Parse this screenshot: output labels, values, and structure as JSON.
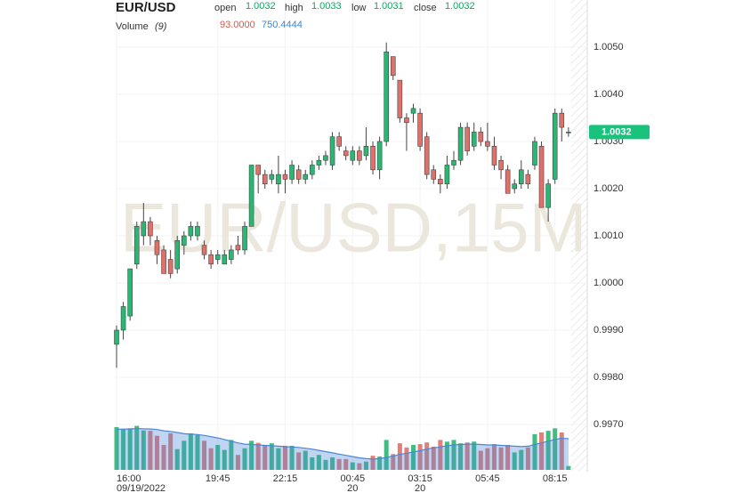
{
  "chart_data": {
    "type": "candlestick",
    "title": "EUR/USD",
    "watermark": "EUR/USD,15M",
    "labels": {
      "open": "open",
      "high": "high",
      "low": "low",
      "close": "close"
    },
    "categories": [
      "16:00",
      null,
      null,
      null,
      null,
      null,
      null,
      null,
      null,
      null,
      null,
      null,
      null,
      null,
      null,
      "19:45",
      null,
      null,
      null,
      null,
      null,
      null,
      null,
      null,
      null,
      "22:15",
      null,
      null,
      null,
      null,
      null,
      null,
      null,
      null,
      null,
      "00:45",
      null,
      null,
      null,
      null,
      null,
      null,
      null,
      null,
      null,
      "03:15",
      null,
      null,
      null,
      null,
      null,
      null,
      null,
      null,
      null,
      "05:45",
      null,
      null,
      null,
      null,
      null,
      null,
      null,
      null,
      null,
      "08:15",
      null,
      null
    ],
    "dates": [
      "09/19/2022",
      null,
      null,
      null,
      null,
      null,
      null,
      null,
      null,
      null,
      null,
      null,
      null,
      null,
      null,
      null,
      null,
      null,
      null,
      null,
      null,
      null,
      null,
      null,
      null,
      null,
      null,
      null,
      null,
      null,
      null,
      null,
      null,
      null,
      null,
      "20",
      null,
      null,
      null,
      null,
      null,
      null,
      null,
      null,
      null,
      "20",
      null,
      null,
      null,
      null,
      null,
      null,
      null,
      null,
      null,
      null,
      null,
      null,
      null,
      null,
      null,
      null,
      null,
      null,
      null,
      null,
      null,
      null
    ],
    "open": [
      0.9987,
      0.999,
      0.9993,
      1.0004,
      1.001,
      1.0013,
      1.0009,
      1.0007,
      1.0005,
      1.0003,
      1.0008,
      1.001,
      1.001,
      1.0008,
      1.0006,
      1.0005,
      1.0004,
      1.0005,
      1.0008,
      1.0007,
      1.0012,
      1.0025,
      1.0023,
      1.0022,
      1.0021,
      1.0023,
      1.0022,
      1.0024,
      1.0022,
      1.0023,
      1.0025,
      1.0026,
      1.0025,
      1.0031,
      1.0028,
      1.0026,
      1.0028,
      1.0027,
      1.0029,
      1.0024,
      1.003,
      1.0048,
      1.0043,
      1.0035,
      1.0036,
      1.0036,
      1.0031,
      1.0024,
      1.0022,
      1.0021,
      1.0025,
      1.0026,
      1.0033,
      1.0029,
      1.0032,
      1.003,
      1.0029,
      1.0026,
      1.0024,
      1.002,
      1.0021,
      1.0023,
      1.0025,
      1.0029,
      1.0016,
      1.0022,
      1.0036,
      1.0032
    ],
    "high": [
      0.9991,
      0.9996,
      1.0003,
      1.0013,
      1.0017,
      1.0014,
      1.001,
      1.0008,
      1.0007,
      1.001,
      1.0011,
      1.0013,
      1.0013,
      1.0009,
      1.0007,
      1.0007,
      1.0007,
      1.0008,
      1.001,
      1.0013,
      1.0025,
      1.0025,
      1.0024,
      1.0024,
      1.0027,
      1.0024,
      1.0026,
      1.0025,
      1.0024,
      1.0026,
      1.0027,
      1.0028,
      1.0032,
      1.0032,
      1.0029,
      1.0029,
      1.0029,
      1.0033,
      1.003,
      1.0031,
      1.0051,
      1.0048,
      1.0043,
      1.0036,
      1.0038,
      1.0037,
      1.0032,
      1.0025,
      1.0023,
      1.0027,
      1.0028,
      1.0034,
      1.0034,
      1.0034,
      1.0033,
      1.0034,
      1.0031,
      1.0027,
      1.0025,
      1.0022,
      1.0026,
      1.0024,
      1.0031,
      1.003,
      1.0022,
      1.0037,
      1.0037,
      1.0033
    ],
    "low": [
      0.9982,
      0.9988,
      0.9992,
      1.0003,
      1.0008,
      1.0008,
      1.0004,
      1.0002,
      1.0001,
      1.0002,
      1.0006,
      1.0009,
      1.0009,
      1.0005,
      1.0003,
      1.0004,
      1.0004,
      1.0004,
      1.0006,
      1.0006,
      1.0012,
      1.0019,
      1.002,
      1.0021,
      1.0019,
      1.0019,
      1.0021,
      1.0021,
      1.0021,
      1.0022,
      1.0024,
      1.0025,
      1.0024,
      1.0028,
      1.0026,
      1.0025,
      1.0025,
      1.0026,
      1.0023,
      1.0022,
      1.0029,
      1.0043,
      1.0034,
      1.0028,
      1.0034,
      1.0028,
      1.0022,
      1.0021,
      1.0019,
      1.002,
      1.0024,
      1.0025,
      1.0027,
      1.0028,
      1.0029,
      1.0028,
      1.0024,
      1.0022,
      1.0019,
      1.0019,
      1.002,
      1.002,
      1.0024,
      1.0016,
      1.0013,
      1.0021,
      1.003,
      1.0031
    ],
    "close": [
      0.999,
      0.9995,
      1.0003,
      1.0012,
      1.0013,
      1.001,
      1.0006,
      1.0002,
      1.0002,
      1.0009,
      1.001,
      1.0012,
      1.0012,
      1.0006,
      1.0004,
      1.0006,
      1.0006,
      1.0007,
      1.0007,
      1.0012,
      1.0025,
      1.0023,
      1.0021,
      1.0023,
      1.0023,
      1.0022,
      1.0025,
      1.0022,
      1.0023,
      1.0025,
      1.0026,
      1.0027,
      1.0031,
      1.0029,
      1.0027,
      1.0028,
      1.0026,
      1.0029,
      1.0024,
      1.003,
      1.0049,
      1.0044,
      1.0035,
      1.0034,
      1.0037,
      1.0029,
      1.0023,
      1.0022,
      1.0021,
      1.0025,
      1.0026,
      1.0033,
      1.0028,
      1.0032,
      1.003,
      1.0029,
      1.0025,
      1.0024,
      1.0019,
      1.0021,
      1.0024,
      1.0021,
      1.003,
      1.0016,
      1.0021,
      1.0036,
      1.0033,
      1.0032
    ],
    "up_color": "#2bb673",
    "down_color": "#e0706a",
    "ylim": [
      0.996,
      1.006
    ],
    "yticks": [
      {
        "value": 1.005,
        "label": "1.0050"
      },
      {
        "value": 1.004,
        "label": "1.0040"
      },
      {
        "value": 1.003,
        "label": "1.0030"
      },
      {
        "value": 1.002,
        "label": "1.0020"
      },
      {
        "value": 1.001,
        "label": "1.0010"
      },
      {
        "value": 1.0,
        "label": "1.0000"
      },
      {
        "value": 0.999,
        "label": "0.9990"
      },
      {
        "value": 0.998,
        "label": "0.9980"
      },
      {
        "value": 0.997,
        "label": "0.9970"
      }
    ],
    "grid": true,
    "volume": {
      "name": "Volume",
      "ma_label": "(9)",
      "ma_color": "#4a86d8",
      "ylim": [
        0,
        1200
      ],
      "values": [
        1030,
        990,
        1000,
        1060,
        950,
        940,
        820,
        600,
        880,
        500,
        700,
        880,
        840,
        700,
        520,
        600,
        480,
        720,
        360,
        520,
        700,
        650,
        600,
        640,
        520,
        580,
        580,
        420,
        460,
        300,
        360,
        240,
        300,
        260,
        260,
        180,
        160,
        200,
        340,
        320,
        720,
        380,
        640,
        540,
        600,
        620,
        660,
        560,
        720,
        680,
        720,
        640,
        660,
        680,
        460,
        520,
        620,
        540,
        600,
        420,
        480,
        540,
        860,
        900,
        940,
        1000,
        900,
        93
      ],
      "value_labels": [
        null,
        null,
        null,
        null,
        null,
        null,
        null,
        null,
        null,
        null,
        null,
        null,
        null,
        null,
        null,
        null,
        null,
        null,
        null,
        null,
        null,
        null,
        null,
        null,
        null,
        null,
        null,
        null,
        null,
        null,
        null,
        null,
        null,
        null,
        null,
        null,
        null,
        null,
        null,
        null,
        null,
        null,
        null,
        null,
        null,
        null,
        null,
        null,
        null,
        null,
        null,
        null,
        null,
        null,
        null,
        null,
        null,
        null,
        null,
        null,
        null,
        null,
        null,
        null,
        null,
        null,
        null,
        "93.0000"
      ],
      "ma_values": [
        980,
        980,
        985,
        995,
        990,
        985,
        970,
        940,
        925,
        900,
        870,
        860,
        850,
        830,
        800,
        770,
        730,
        690,
        650,
        620,
        610,
        600,
        590,
        580,
        570,
        560,
        550,
        540,
        520,
        500,
        470,
        440,
        410,
        380,
        350,
        320,
        290,
        270,
        260,
        270,
        300,
        330,
        370,
        400,
        430,
        460,
        500,
        530,
        550,
        580,
        600,
        610,
        620,
        620,
        610,
        600,
        600,
        590,
        580,
        570,
        560,
        570,
        610,
        650,
        690,
        730,
        760,
        750.4444
      ]
    }
  }
}
